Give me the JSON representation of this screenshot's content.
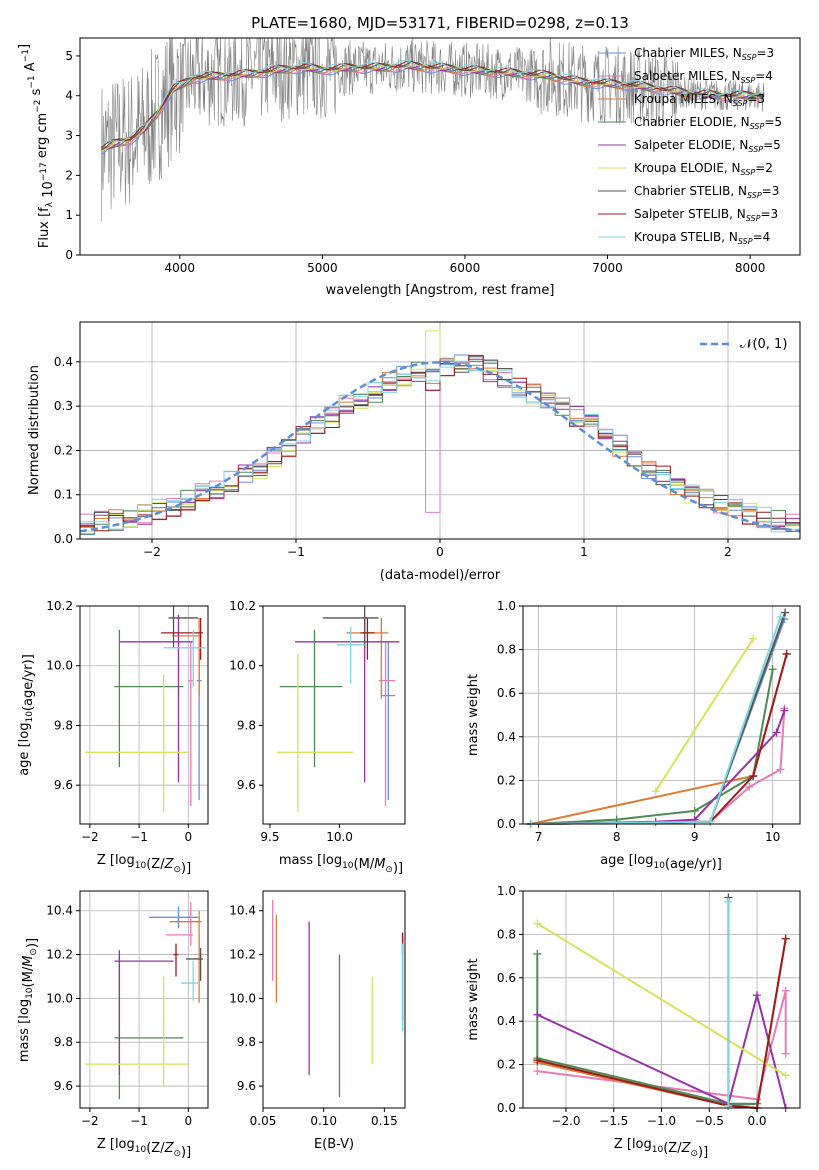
{
  "figure": {
    "title": "PLATE=1680, MJD=53171, FIBERID=0298, z=0.13"
  },
  "series": [
    {
      "name": "Chabrier MILES",
      "nssp": "3",
      "color": "#6b8fdc",
      "marker": "+"
    },
    {
      "name": "Salpeter MILES",
      "nssp": "4",
      "color": "#e87ab8",
      "marker": "+"
    },
    {
      "name": "Kroupa MILES",
      "nssp": "3",
      "color": "#e07a32",
      "marker": "+"
    },
    {
      "name": "Chabrier ELODIE",
      "nssp": "5",
      "color": "#4f8a55",
      "marker": "+"
    },
    {
      "name": "Salpeter ELODIE",
      "nssp": "5",
      "color": "#9932a8",
      "marker": "+"
    },
    {
      "name": "Kroupa ELODIE",
      "nssp": "2",
      "color": "#d6e35a",
      "marker": "+"
    },
    {
      "name": "Chabrier STELIB",
      "nssp": "3",
      "color": "#555555",
      "marker": "+"
    },
    {
      "name": "Salpeter STELIB",
      "nssp": "3",
      "color": "#9b1c1c",
      "marker": "+"
    },
    {
      "name": "Kroupa STELIB",
      "nssp": "4",
      "color": "#7ed6e0",
      "marker": "+"
    }
  ],
  "chart_data": [
    {
      "id": "spectrum",
      "type": "line",
      "title": "PLATE=1680, MJD=53171, FIBERID=0298, z=0.13",
      "xlabel": "wavelength [Angstrom, rest frame]",
      "ylabel": "Flux [f_λ 10^-17 erg cm^-2 s^-1 A^-1]",
      "xlim": [
        3300,
        8350
      ],
      "ylim": [
        0,
        5.45
      ],
      "xticks": [
        4000,
        5000,
        6000,
        7000,
        8000
      ],
      "yticks": [
        0,
        1,
        2,
        3,
        4,
        5
      ],
      "data_color": "#808080",
      "continuum": {
        "x": [
          3450,
          3550,
          3650,
          3750,
          3850,
          3950,
          4100,
          4300,
          4500,
          4700,
          4860,
          5000,
          5200,
          5400,
          5600,
          5800,
          6000,
          6200,
          6400,
          6600,
          6800,
          7000,
          7200,
          7400,
          7600,
          7800,
          8000,
          8100
        ],
        "y": [
          2.65,
          2.8,
          2.9,
          3.15,
          3.6,
          4.15,
          4.45,
          4.5,
          4.55,
          4.65,
          4.7,
          4.65,
          4.7,
          4.7,
          4.75,
          4.7,
          4.65,
          4.6,
          4.55,
          4.5,
          4.35,
          4.3,
          4.25,
          4.15,
          4.05,
          4.0,
          4.0,
          4.0
        ]
      },
      "grid": false,
      "legend": "right"
    },
    {
      "id": "residuals",
      "type": "histogram",
      "xlabel": "(data-model)/error",
      "ylabel": "Normed distribution",
      "xlim": [
        -2.5,
        2.5
      ],
      "ylim": [
        0,
        0.49
      ],
      "xticks": [
        -2,
        -1,
        0,
        1,
        2
      ],
      "yticks": [
        0.0,
        0.1,
        0.2,
        0.3,
        0.4
      ],
      "bins": [
        -2.5,
        -2.4,
        -2.3,
        -2.2,
        -2.1,
        -2.0,
        -1.9,
        -1.8,
        -1.7,
        -1.6,
        -1.5,
        -1.4,
        -1.3,
        -1.2,
        -1.1,
        -1.0,
        -0.9,
        -0.8,
        -0.7,
        -0.6,
        -0.5,
        -0.4,
        -0.3,
        -0.2,
        -0.1,
        0.0,
        0.1,
        0.2,
        0.3,
        0.4,
        0.5,
        0.6,
        0.7,
        0.8,
        0.9,
        1.0,
        1.1,
        1.2,
        1.3,
        1.4,
        1.5,
        1.6,
        1.7,
        1.8,
        1.9,
        2.0,
        2.1,
        2.2,
        2.3,
        2.4,
        2.5
      ],
      "base_counts": [
        0.035,
        0.038,
        0.042,
        0.048,
        0.055,
        0.065,
        0.075,
        0.088,
        0.1,
        0.11,
        0.128,
        0.145,
        0.16,
        0.185,
        0.21,
        0.23,
        0.255,
        0.275,
        0.3,
        0.32,
        0.33,
        0.355,
        0.37,
        0.38,
        0.36,
        0.39,
        0.4,
        0.395,
        0.38,
        0.36,
        0.34,
        0.33,
        0.32,
        0.3,
        0.275,
        0.26,
        0.235,
        0.21,
        0.185,
        0.16,
        0.14,
        0.12,
        0.1,
        0.088,
        0.075,
        0.065,
        0.058,
        0.048,
        0.04,
        0.033
      ],
      "reference": {
        "label": "𝒩(0, 1)",
        "mean": 0,
        "sigma": 1,
        "color": "#5b8fd9"
      },
      "grid": true,
      "legend": "top-right"
    },
    {
      "id": "age-vs-Z",
      "type": "errorbar",
      "xlabel": "Z [log10(Z/Z⊙)]",
      "ylabel": "age  [log10(age/yr)]",
      "xlim": [
        -2.2,
        0.4
      ],
      "ylim": [
        9.47,
        10.2
      ],
      "xticks": [
        -2,
        -1,
        0
      ],
      "yticks": [
        9.6,
        9.8,
        10.0,
        10.2
      ],
      "points": [
        {
          "s": 0,
          "x": 0.22,
          "y": 9.95,
          "xerr": [
            0.05,
            0.05
          ],
          "yerr": [
            0.4,
            0.13
          ]
        },
        {
          "s": 1,
          "x": 0.05,
          "y": 9.95,
          "xerr": [
            0.05,
            0.05
          ],
          "yerr": [
            0.42,
            0.13
          ]
        },
        {
          "s": 2,
          "x": 0.22,
          "y": 10.1,
          "xerr": [
            0.55,
            0.05
          ],
          "yerr": [
            0.2,
            0.06
          ]
        },
        {
          "s": 3,
          "x": -1.4,
          "y": 9.93,
          "xerr": [
            0.1,
            1.3
          ],
          "yerr": [
            0.27,
            0.19
          ]
        },
        {
          "s": 4,
          "x": -0.2,
          "y": 10.08,
          "xerr": [
            1.2,
            0.3
          ],
          "yerr": [
            0.47,
            0.09
          ]
        },
        {
          "s": 5,
          "x": -0.5,
          "y": 9.71,
          "xerr": [
            1.6,
            0.5
          ],
          "yerr": [
            0.2,
            0.26
          ]
        },
        {
          "s": 6,
          "x": -0.3,
          "y": 10.16,
          "xerr": [
            0.1,
            0.5
          ],
          "yerr": [
            0.1,
            0.04
          ]
        },
        {
          "s": 7,
          "x": 0.25,
          "y": 10.11,
          "xerr": [
            0.8,
            0.05
          ],
          "yerr": [
            0.09,
            0.05
          ]
        },
        {
          "s": 8,
          "x": 0.1,
          "y": 10.06,
          "xerr": [
            0.6,
            0.25
          ],
          "yerr": [
            0.13,
            0.06
          ]
        }
      ],
      "grid": true
    },
    {
      "id": "age-vs-mass",
      "type": "errorbar",
      "xlabel": "mass [log10(M/M⊙)]",
      "ylabel": "",
      "xlim": [
        9.45,
        10.47
      ],
      "ylim": [
        9.47,
        10.2
      ],
      "xticks": [
        9.5,
        10.0
      ],
      "yticks": [
        9.6,
        9.8,
        10.0,
        10.2
      ],
      "points": [
        {
          "s": 0,
          "x": 10.35,
          "y": 9.9,
          "xerr": [
            0.05,
            0.05
          ],
          "yerr": [
            0.35,
            0.18
          ]
        },
        {
          "s": 1,
          "x": 10.33,
          "y": 9.95,
          "xerr": [
            0.05,
            0.07
          ],
          "yerr": [
            0.42,
            0.13
          ]
        },
        {
          "s": 2,
          "x": 10.3,
          "y": 10.11,
          "xerr": [
            0.25,
            0.05
          ],
          "yerr": [
            0.22,
            0.05
          ]
        },
        {
          "s": 3,
          "x": 9.82,
          "y": 9.93,
          "xerr": [
            0.25,
            0.2
          ],
          "yerr": [
            0.27,
            0.19
          ]
        },
        {
          "s": 4,
          "x": 10.18,
          "y": 10.08,
          "xerr": [
            0.5,
            0.25
          ],
          "yerr": [
            0.47,
            0.09
          ]
        },
        {
          "s": 5,
          "x": 9.7,
          "y": 9.71,
          "xerr": [
            0.15,
            0.4
          ],
          "yerr": [
            0.2,
            0.33
          ]
        },
        {
          "s": 6,
          "x": 10.18,
          "y": 10.16,
          "xerr": [
            0.3,
            0.1
          ],
          "yerr": [
            0.1,
            0.04
          ]
        },
        {
          "s": 7,
          "x": 10.2,
          "y": 10.11,
          "xerr": [
            0.05,
            0.05
          ],
          "yerr": [
            0.09,
            0.05
          ]
        },
        {
          "s": 8,
          "x": 10.08,
          "y": 10.07,
          "xerr": [
            0.1,
            0.1
          ],
          "yerr": [
            0.13,
            0.06
          ]
        }
      ],
      "grid": false
    },
    {
      "id": "weight-vs-age",
      "type": "line",
      "xlabel": "age  [log10(age/yr)]",
      "ylabel": "mass weight",
      "xlim": [
        6.8,
        10.35
      ],
      "ylim": [
        0,
        1.0
      ],
      "xticks": [
        7,
        8,
        9,
        10
      ],
      "yticks": [
        0.0,
        0.2,
        0.4,
        0.6,
        0.8,
        1.0
      ],
      "series_points": [
        {
          "s": 0,
          "x": [
            6.9,
            9.2,
            10.15
          ],
          "y": [
            0.0,
            0.01,
            0.94
          ]
        },
        {
          "s": 1,
          "x": [
            6.9,
            9.2,
            9.7,
            10.1,
            10.15
          ],
          "y": [
            0.0,
            0.01,
            0.17,
            0.25,
            0.53
          ]
        },
        {
          "s": 2,
          "x": [
            6.9,
            9.75,
            10.18
          ],
          "y": [
            0.0,
            0.22,
            0.78
          ]
        },
        {
          "s": 3,
          "x": [
            6.9,
            8.0,
            9.0,
            9.75,
            10.0
          ],
          "y": [
            0.0,
            0.02,
            0.06,
            0.22,
            0.71
          ]
        },
        {
          "s": 4,
          "x": [
            6.9,
            8.5,
            9.0,
            10.05,
            10.15
          ],
          "y": [
            0.0,
            0.01,
            0.02,
            0.42,
            0.52
          ]
        },
        {
          "s": 5,
          "x": [
            8.5,
            9.75
          ],
          "y": [
            0.15,
            0.85
          ]
        },
        {
          "s": 6,
          "x": [
            6.9,
            9.2,
            10.16
          ],
          "y": [
            0.0,
            0.01,
            0.97
          ]
        },
        {
          "s": 7,
          "x": [
            6.9,
            9.2,
            9.75,
            10.18
          ],
          "y": [
            0.0,
            0.01,
            0.22,
            0.78
          ]
        },
        {
          "s": 8,
          "x": [
            6.9,
            9.2,
            10.1
          ],
          "y": [
            0.0,
            0.01,
            0.95
          ]
        }
      ],
      "grid": true
    },
    {
      "id": "mass-vs-Z",
      "type": "errorbar",
      "xlabel": "Z [log10(Z/Z⊙)]",
      "ylabel": "mass [log10(M/M⊙)]",
      "xlim": [
        -2.2,
        0.4
      ],
      "ylim": [
        9.5,
        10.49
      ],
      "xticks": [
        -2,
        -1,
        0
      ],
      "yticks": [
        9.6,
        9.8,
        10.0,
        10.2,
        10.4
      ],
      "points": [
        {
          "s": 0,
          "x": -0.2,
          "y": 10.37,
          "xerr": [
            0.6,
            0.4
          ],
          "yerr": [
            0.05,
            0.05
          ]
        },
        {
          "s": 1,
          "x": 0.05,
          "y": 10.29,
          "xerr": [
            0.5,
            0.05
          ],
          "yerr": [
            0.05,
            0.15
          ]
        },
        {
          "s": 2,
          "x": 0.22,
          "y": 10.35,
          "xerr": [
            0.6,
            0.05
          ],
          "yerr": [
            0.37,
            0.05
          ]
        },
        {
          "s": 3,
          "x": -1.4,
          "y": 9.82,
          "xerr": [
            0.1,
            1.3
          ],
          "yerr": [
            0.28,
            0.38
          ]
        },
        {
          "s": 4,
          "x": -1.4,
          "y": 10.17,
          "xerr": [
            0.1,
            1.1
          ],
          "yerr": [
            0.52,
            0.05
          ]
        },
        {
          "s": 5,
          "x": -0.5,
          "y": 9.7,
          "xerr": [
            1.6,
            0.5
          ],
          "yerr": [
            0.1,
            0.4
          ]
        },
        {
          "s": 6,
          "x": 0.25,
          "y": 10.18,
          "xerr": [
            0.3,
            0.05
          ],
          "yerr": [
            0.1,
            0.05
          ]
        },
        {
          "s": 7,
          "x": -0.25,
          "y": 10.2,
          "xerr": [
            0.05,
            0.05
          ],
          "yerr": [
            0.1,
            0.05
          ]
        },
        {
          "s": 8,
          "x": 0.1,
          "y": 10.07,
          "xerr": [
            0.25,
            0.1
          ],
          "yerr": [
            0.08,
            0.1
          ]
        }
      ],
      "grid": true
    },
    {
      "id": "mass-vs-ebv",
      "type": "errorbar",
      "xlabel": "E(B-V)",
      "ylabel": "",
      "xlim": [
        0.05,
        0.167
      ],
      "ylim": [
        9.5,
        10.49
      ],
      "xticks": [
        0.05,
        0.1,
        0.15
      ],
      "yticks": [
        9.6,
        9.8,
        10.0,
        10.2,
        10.4
      ],
      "points": [
        {
          "s": 0,
          "x": 0.165,
          "y": 10.05,
          "xerr": [
            0,
            0
          ],
          "yerr": [
            0.2,
            0.2
          ]
        },
        {
          "s": 1,
          "x": 0.058,
          "y": 10.25,
          "xerr": [
            0,
            0
          ],
          "yerr": [
            0.17,
            0.2
          ]
        },
        {
          "s": 2,
          "x": 0.061,
          "y": 10.18,
          "xerr": [
            0,
            0
          ],
          "yerr": [
            0.2,
            0.2
          ]
        },
        {
          "s": 3,
          "x": 0.113,
          "y": 9.9,
          "xerr": [
            0,
            0
          ],
          "yerr": [
            0.35,
            0.3
          ]
        },
        {
          "s": 4,
          "x": 0.088,
          "y": 10.0,
          "xerr": [
            0,
            0
          ],
          "yerr": [
            0.35,
            0.35
          ]
        },
        {
          "s": 5,
          "x": 0.14,
          "y": 9.9,
          "xerr": [
            0,
            0
          ],
          "yerr": [
            0.2,
            0.2
          ]
        },
        {
          "s": 6,
          "x": 0.165,
          "y": 10.1,
          "xerr": [
            0,
            0
          ],
          "yerr": [
            0.2,
            0.2
          ]
        },
        {
          "s": 7,
          "x": 0.165,
          "y": 10.25,
          "xerr": [
            0,
            0
          ],
          "yerr": [
            0.05,
            0.05
          ]
        },
        {
          "s": 8,
          "x": 0.165,
          "y": 10.05,
          "xerr": [
            0,
            0
          ],
          "yerr": [
            0.2,
            0.2
          ]
        }
      ],
      "grid": false
    },
    {
      "id": "weight-vs-Z",
      "type": "line",
      "xlabel": "Z [log10(Z/Z⊙)]",
      "ylabel": "mass weight",
      "xlim": [
        -2.45,
        0.45
      ],
      "ylim": [
        0,
        1.0
      ],
      "xticks": [
        -2.0,
        -1.5,
        -1.0,
        -0.5,
        0.0
      ],
      "yticks": [
        0.0,
        0.2,
        0.4,
        0.6,
        0.8,
        1.0
      ],
      "series_points": [
        {
          "s": 0,
          "x": [
            -2.3,
            -0.3,
            0.0
          ],
          "y": [
            0.22,
            0.01,
            0.02
          ]
        },
        {
          "s": 1,
          "x": [
            -2.3,
            0.0,
            0.3,
            0.3
          ],
          "y": [
            0.17,
            0.04,
            0.54,
            0.25
          ]
        },
        {
          "s": 2,
          "x": [
            -2.3,
            -0.3,
            0.0,
            0.3
          ],
          "y": [
            0.21,
            0.01,
            0.0,
            0.78
          ]
        },
        {
          "s": 3,
          "x": [
            -2.3,
            -2.3,
            -0.3,
            0.0
          ],
          "y": [
            0.71,
            0.23,
            0.02,
            0.02
          ]
        },
        {
          "s": 4,
          "x": [
            -2.3,
            -0.3,
            0.0,
            0.3
          ],
          "y": [
            0.43,
            0.02,
            0.52,
            0.0
          ]
        },
        {
          "s": 5,
          "x": [
            -2.3,
            0.3
          ],
          "y": [
            0.85,
            0.15
          ]
        },
        {
          "s": 6,
          "x": [
            -0.3,
            -0.3
          ],
          "y": [
            0.97,
            0.01
          ]
        },
        {
          "s": 7,
          "x": [
            -2.3,
            -0.3,
            0.0,
            0.3
          ],
          "y": [
            0.22,
            0.01,
            0.0,
            0.78
          ]
        },
        {
          "s": 8,
          "x": [
            -0.3,
            -0.3
          ],
          "y": [
            0.95,
            0.01
          ]
        }
      ],
      "grid": true
    }
  ]
}
